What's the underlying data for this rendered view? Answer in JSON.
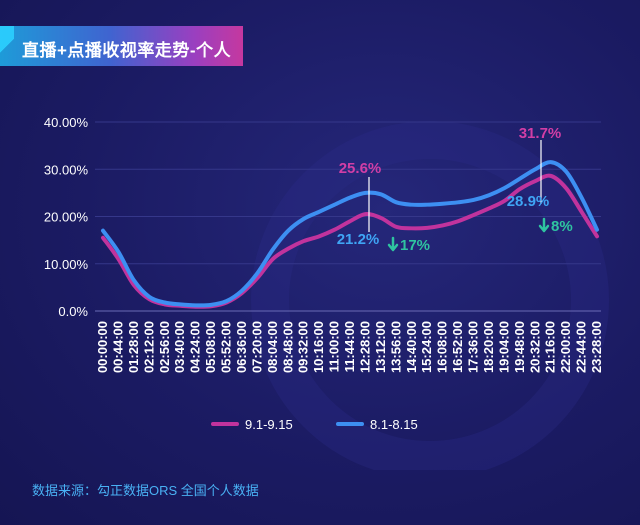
{
  "title": "直播+点播收视率走势-个人",
  "source_text": "数据来源：勾正数据ORS 全国个人数据",
  "colors": {
    "background": "#1b1b63",
    "series_9": "#c1339d",
    "series_8": "#3d8ff2",
    "annotation_magenta": "#d23ea6",
    "annotation_blue": "#3fa5f5",
    "annotation_green": "#2fc4a0",
    "axis_text": "#ffffff"
  },
  "chart_data": {
    "type": "line",
    "title": "",
    "xlabel": "",
    "ylabel": "",
    "ylim": [
      0,
      40
    ],
    "yticks": [
      "0.0%",
      "10.00%",
      "20.00%",
      "30.00%",
      "40.00%"
    ],
    "categories": [
      "00:00:00",
      "00:44:00",
      "01:28:00",
      "02:12:00",
      "02:56:00",
      "03:40:00",
      "04:24:00",
      "05:08:00",
      "05:52:00",
      "06:36:00",
      "07:20:00",
      "08:04:00",
      "08:48:00",
      "09:32:00",
      "10:16:00",
      "11:00:00",
      "11:44:00",
      "12:28:00",
      "13:12:00",
      "13:56:00",
      "14:40:00",
      "15:24:00",
      "16:08:00",
      "16:52:00",
      "17:36:00",
      "18:20:00",
      "19:04:00",
      "19:48:00",
      "20:32:00",
      "21:16:00",
      "22:00:00",
      "22:44:00",
      "23:28:00"
    ],
    "series": [
      {
        "name": "9.1-9.15",
        "values": [
          15.5,
          11,
          5.5,
          2.5,
          1.4,
          1.1,
          0.9,
          1,
          1.8,
          3.8,
          7,
          11,
          13.2,
          14.8,
          15.8,
          17.2,
          19,
          20.5,
          19.7,
          17.8,
          17.5,
          17.6,
          18.1,
          19,
          20.3,
          21.7,
          23.3,
          25.8,
          27.5,
          28.6,
          26,
          21,
          15.8
        ]
      },
      {
        "name": "8.1-8.15",
        "values": [
          17,
          12.5,
          6.5,
          3,
          1.8,
          1.4,
          1.2,
          1.3,
          2.1,
          4.3,
          8,
          13,
          17,
          19.5,
          21,
          22.5,
          24,
          25,
          24.7,
          23,
          22.5,
          22.5,
          22.7,
          23,
          23.5,
          24.5,
          26,
          28,
          30,
          31.5,
          29.5,
          24,
          17.2
        ]
      }
    ],
    "legend": "bottom-center",
    "annotations": [
      {
        "text": "25.6%",
        "color": "magenta"
      },
      {
        "text": "21.2%",
        "color": "blue"
      },
      {
        "text": "17%",
        "arrow": "down",
        "color": "green"
      },
      {
        "text": "31.7%",
        "color": "magenta"
      },
      {
        "text": "28.9%",
        "color": "blue"
      },
      {
        "text": "8%",
        "arrow": "down",
        "color": "green"
      }
    ]
  }
}
